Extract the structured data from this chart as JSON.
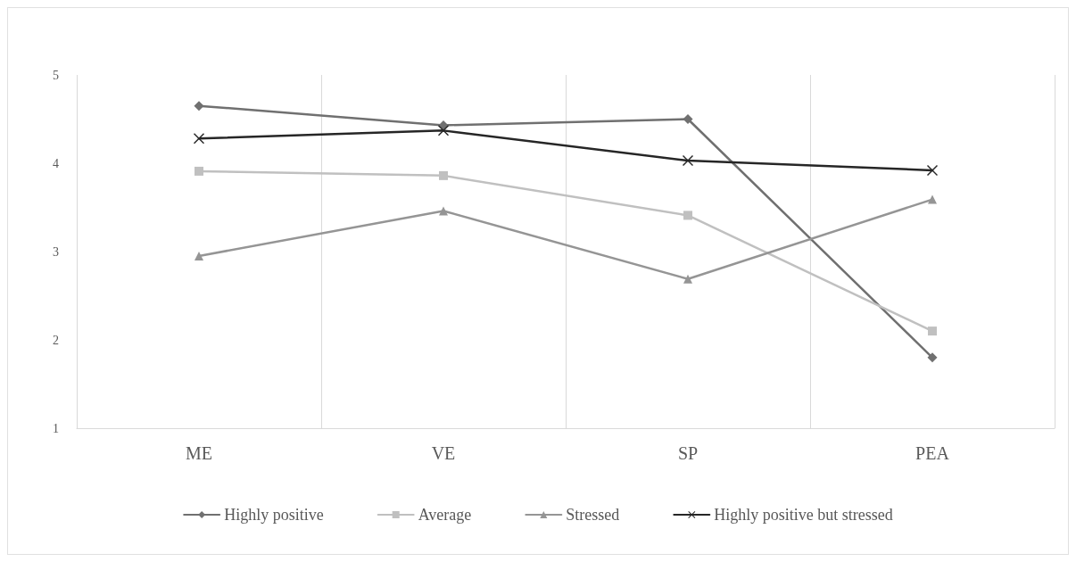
{
  "chart_data": {
    "type": "line",
    "categories": [
      "ME",
      "VE",
      "SP",
      "PEA"
    ],
    "series": [
      {
        "name": "Highly positive",
        "color": "#707070",
        "marker": "diamond",
        "values": [
          4.65,
          4.43,
          4.5,
          1.8
        ]
      },
      {
        "name": "Average",
        "color": "#c0c0c0",
        "marker": "square",
        "values": [
          3.91,
          3.86,
          3.41,
          2.1
        ]
      },
      {
        "name": "Stressed",
        "color": "#959595",
        "marker": "triangle",
        "values": [
          2.95,
          3.46,
          2.69,
          3.59
        ]
      },
      {
        "name": "Highly positive but stressed",
        "color": "#262626",
        "marker": "cross",
        "values": [
          4.28,
          4.37,
          4.03,
          3.92
        ]
      }
    ],
    "ylim": [
      1,
      5
    ],
    "yticks": [
      1,
      2,
      3,
      4,
      5
    ],
    "grid": "x",
    "legend": "bottom",
    "line_style": "solid"
  }
}
